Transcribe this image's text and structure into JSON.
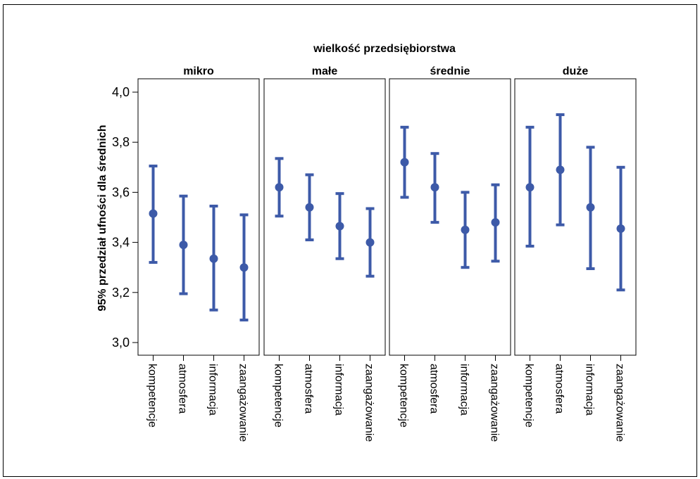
{
  "chart_data": {
    "type": "errorbar",
    "title": "wielkość przedsiębiorstwa",
    "ylabel": "95% przedział ufności dla średnich",
    "xlabel": "",
    "ylim": [
      3.0,
      4.0
    ],
    "yticks": [
      "3,0",
      "3,2",
      "3,4",
      "3,6",
      "3,8",
      "4,0"
    ],
    "ytick_values": [
      3.0,
      3.2,
      3.4,
      3.6,
      3.8,
      4.0
    ],
    "categories": [
      "kompetencje",
      "atmosfera",
      "informacja",
      "zaangażowanie"
    ],
    "color": "#3d5aa8",
    "panels": [
      {
        "name": "mikro",
        "means": [
          3.515,
          3.39,
          3.335,
          3.3
        ],
        "lower": [
          3.32,
          3.195,
          3.13,
          3.09
        ],
        "upper": [
          3.705,
          3.585,
          3.545,
          3.51
        ]
      },
      {
        "name": "małe",
        "means": [
          3.62,
          3.54,
          3.465,
          3.4
        ],
        "lower": [
          3.505,
          3.41,
          3.335,
          3.265
        ],
        "upper": [
          3.735,
          3.67,
          3.595,
          3.535
        ]
      },
      {
        "name": "średnie",
        "means": [
          3.72,
          3.62,
          3.45,
          3.48
        ],
        "lower": [
          3.58,
          3.48,
          3.3,
          3.325
        ],
        "upper": [
          3.86,
          3.755,
          3.6,
          3.63
        ]
      },
      {
        "name": "duże",
        "means": [
          3.62,
          3.69,
          3.54,
          3.455
        ],
        "lower": [
          3.385,
          3.47,
          3.295,
          3.21
        ],
        "upper": [
          3.86,
          3.91,
          3.78,
          3.7
        ]
      }
    ]
  }
}
